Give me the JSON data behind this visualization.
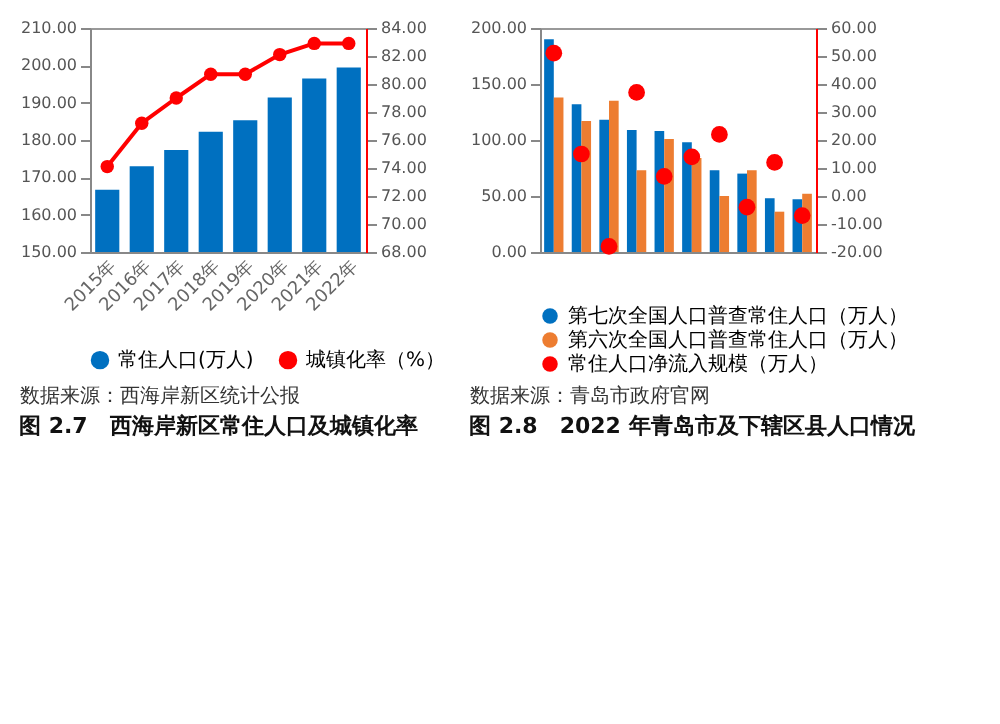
{
  "chart_data": [
    {
      "type": "bar",
      "title": "图 2.7　西海岸新区常住人口及城镇化率",
      "annotations": [
        "数据来源：西海岸新区统计公报"
      ],
      "categories": [
        "2015年",
        "2016年",
        "2017年",
        "2018年",
        "2019年",
        "2020年",
        "2021年",
        "2022年"
      ],
      "series": [
        {
          "name": "常住人口(万人)",
          "color": "#0070c0",
          "values": [
            166.7,
            173.0,
            177.3,
            182.2,
            185.3,
            191.4,
            196.5,
            199.4
          ]
        },
        {
          "name": "城镇化率（%）",
          "type": "line",
          "axis": "y2",
          "color": "#ff0000",
          "values": [
            74.1,
            77.2,
            79.0,
            80.7,
            80.7,
            82.1,
            82.9,
            82.9
          ]
        }
      ],
      "ylim": [
        150,
        210
      ],
      "yticks": [
        {
          "value": 150,
          "label": "150.00"
        },
        {
          "value": 160,
          "label": "160.00"
        },
        {
          "value": 170,
          "label": "170.00"
        },
        {
          "value": 180,
          "label": "180.00"
        },
        {
          "value": 190,
          "label": "190.00"
        },
        {
          "value": 200,
          "label": "200.00"
        },
        {
          "value": 210,
          "label": "210.00"
        }
      ],
      "y2lim": [
        68,
        84
      ],
      "y2ticks": [
        {
          "value": 68,
          "label": "68.00"
        },
        {
          "value": 70,
          "label": "70.00"
        },
        {
          "value": 72,
          "label": "72.00"
        },
        {
          "value": 74,
          "label": "74.00"
        },
        {
          "value": 76,
          "label": "76.00"
        },
        {
          "value": 78,
          "label": "78.00"
        },
        {
          "value": 80,
          "label": "80.00"
        },
        {
          "value": 82,
          "label": "82.00"
        },
        {
          "value": 84,
          "label": "84.00"
        }
      ],
      "legend": "bottom",
      "marker": "circle"
    },
    {
      "type": "bar",
      "title": "图 2.8　2022 年青岛市及下辖区县人口情况",
      "annotations": [
        "数据来源：青岛市政府官网"
      ],
      "categories": [
        null,
        null,
        null,
        null,
        null,
        null,
        null,
        null,
        null,
        null
      ],
      "series": [
        {
          "name": "第七次全国人口普查常住人口（万人）",
          "color": "#0070c0",
          "values": [
            190,
            132,
            118,
            109,
            108,
            98,
            73,
            70,
            48,
            47
          ]
        },
        {
          "name": "第六次全国人口普查常住人口（万人）",
          "color": "#ed7d31",
          "values": [
            138,
            117,
            135,
            73,
            101,
            84,
            50,
            73,
            36,
            52
          ]
        },
        {
          "name": "常住人口净流入规模（万人）",
          "type": "scatter",
          "axis": "y2",
          "color": "#ff0000",
          "values": [
            51,
            15,
            -18,
            37,
            7,
            14,
            22,
            -4,
            12,
            -7
          ]
        }
      ],
      "ylim": [
        0,
        200
      ],
      "yticks": [
        {
          "value": 0,
          "label": "0.00"
        },
        {
          "value": 50,
          "label": "50.00"
        },
        {
          "value": 100,
          "label": "100.00"
        },
        {
          "value": 150,
          "label": "150.00"
        },
        {
          "value": 200,
          "label": "200.00"
        }
      ],
      "y2lim": [
        -20,
        60
      ],
      "y2ticks": [
        {
          "value": -20,
          "label": "-20.00"
        },
        {
          "value": -10,
          "label": "-10.00"
        },
        {
          "value": 0,
          "label": "0.00"
        },
        {
          "value": 10,
          "label": "10.00"
        },
        {
          "value": 20,
          "label": "20.00"
        },
        {
          "value": 30,
          "label": "30.00"
        },
        {
          "value": 40,
          "label": "40.00"
        },
        {
          "value": 50,
          "label": "50.00"
        },
        {
          "value": 60,
          "label": "60.00"
        }
      ],
      "legend": "bottom",
      "marker": "circle"
    }
  ]
}
